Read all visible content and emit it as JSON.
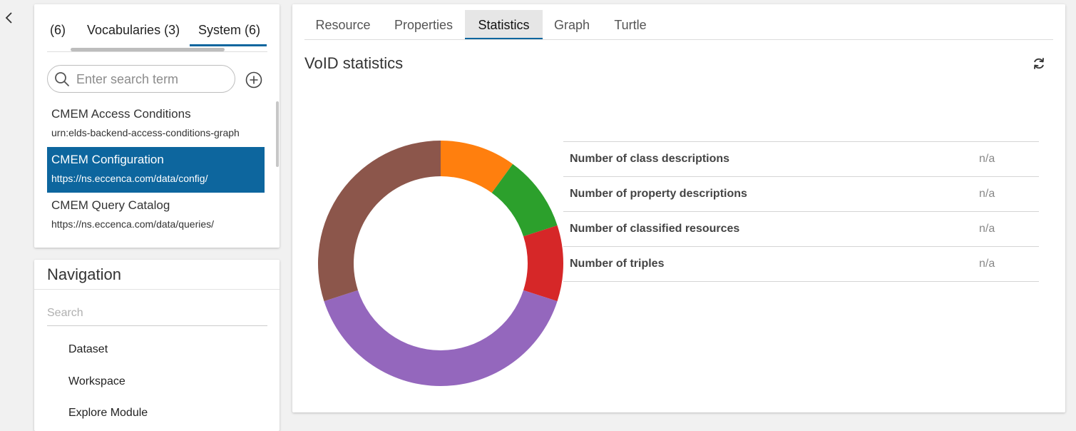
{
  "left_panel": {
    "tabs": [
      {
        "label": "(6)"
      },
      {
        "label": "Vocabularies (3)"
      },
      {
        "label": "System (6)"
      }
    ],
    "active_tab": "System (6)",
    "search": {
      "placeholder": "Enter search term",
      "value": ""
    },
    "graphs": [
      {
        "name": "CMEM Access Conditions",
        "uri": "urn:elds-backend-access-conditions-graph",
        "selected": false
      },
      {
        "name": "CMEM Configuration",
        "uri": "https://ns.eccenca.com/data/config/",
        "selected": true
      },
      {
        "name": "CMEM Query Catalog",
        "uri": "https://ns.eccenca.com/data/queries/",
        "selected": false
      }
    ]
  },
  "navigation": {
    "title": "Navigation",
    "search_placeholder": "Search",
    "items": [
      {
        "label": "Dataset"
      },
      {
        "label": "Workspace"
      },
      {
        "label": "Explore Module"
      }
    ]
  },
  "main": {
    "tabs": [
      {
        "label": "Resource"
      },
      {
        "label": "Properties"
      },
      {
        "label": "Statistics"
      },
      {
        "label": "Graph"
      },
      {
        "label": "Turtle"
      }
    ],
    "active_tab": "Statistics",
    "section_title": "VoID statistics",
    "stats": [
      {
        "label": "Number of class descriptions",
        "value": "n/a"
      },
      {
        "label": "Number of property descriptions",
        "value": "n/a"
      },
      {
        "label": "Number of classified resources",
        "value": "n/a"
      },
      {
        "label": "Number of triples",
        "value": "n/a"
      }
    ]
  },
  "chart_data": {
    "type": "pie",
    "style": "donut",
    "values": [
      1,
      1,
      1,
      4,
      3
    ],
    "colors": [
      "#ff7f0e",
      "#2ca02c",
      "#d62728",
      "#9467bd",
      "#8c564b"
    ]
  },
  "theme": {
    "accent": "#0d669e"
  },
  "icons": {
    "collapse": "chevron-left-icon",
    "search": "search-icon",
    "add": "add-circle-icon",
    "refresh": "refresh-icon"
  }
}
